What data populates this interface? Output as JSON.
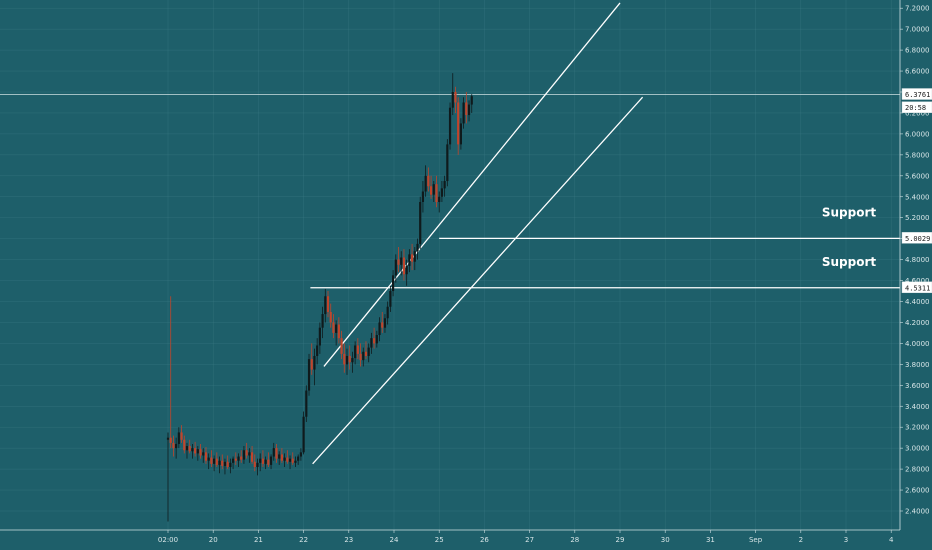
{
  "chart_data": {
    "type": "candlestick",
    "grid": true,
    "y_range": [
      2.26,
      7.26
    ],
    "y_ticks": [
      "2.4000",
      "2.6000",
      "2.8000",
      "3.0000",
      "3.2000",
      "3.4000",
      "3.6000",
      "3.8000",
      "4.0000",
      "4.2000",
      "4.4000",
      "4.6000",
      "4.8000",
      "5.0000",
      "5.2000",
      "5.4000",
      "5.6000",
      "5.8000",
      "6.0000",
      "6.2000",
      "6.4000",
      "6.6000",
      "6.8000",
      "7.0000",
      "7.2000"
    ],
    "x_ticks": [
      "02:00",
      "20",
      "21",
      "22",
      "23",
      "24",
      "25",
      "26",
      "27",
      "28",
      "29",
      "30",
      "31",
      "Sep",
      "2",
      "3",
      "4"
    ],
    "price_labels": [
      {
        "name": "last-price",
        "text": "6.3761",
        "value": 6.3761
      },
      {
        "name": "countdown",
        "text": "20:58",
        "value": 6.25
      },
      {
        "name": "support-upper",
        "text": "5.0029",
        "value": 5.0029
      },
      {
        "name": "support-lower",
        "text": "4.5311",
        "value": 4.5311
      }
    ],
    "annotations": [
      {
        "name": "support-label-upper",
        "text": "Support",
        "level": 5.0029
      },
      {
        "name": "support-label-lower",
        "text": "Support",
        "level": 4.5311
      }
    ],
    "horizontal_lines": [
      {
        "name": "last-price-line",
        "value": 6.3761,
        "from_day": 0,
        "color": "#cfe0e3",
        "width": 0.7
      },
      {
        "name": "support-line-upper",
        "value": 5.0029,
        "from_day": 6.0,
        "color": "#ffffff",
        "width": 1.3
      },
      {
        "name": "support-line-lower",
        "value": 4.5311,
        "from_day": 3.15,
        "color": "#ffffff",
        "width": 1.3
      }
    ],
    "trend_lines": [
      {
        "name": "channel-upper-line",
        "from": [
          3.45,
          3.78
        ],
        "to": [
          10.0,
          7.25
        ]
      },
      {
        "name": "channel-lower-line",
        "from": [
          3.2,
          2.85
        ],
        "to": [
          10.5,
          6.35
        ]
      }
    ],
    "candles": [
      [
        0.0,
        3.08,
        3.15,
        2.3,
        3.1
      ],
      [
        0.06,
        3.1,
        4.45,
        3.0,
        3.05
      ],
      [
        0.12,
        3.05,
        3.12,
        2.92,
        3.0
      ],
      [
        0.18,
        3.0,
        3.1,
        2.9,
        3.04
      ],
      [
        0.24,
        3.04,
        3.2,
        3.0,
        3.15
      ],
      [
        0.3,
        3.15,
        3.22,
        3.05,
        3.08
      ],
      [
        0.36,
        3.08,
        3.12,
        2.95,
        2.98
      ],
      [
        0.42,
        2.98,
        3.05,
        2.9,
        3.02
      ],
      [
        0.48,
        3.02,
        3.08,
        2.95,
        2.97
      ],
      [
        0.54,
        2.97,
        3.04,
        2.9,
        3.0
      ],
      [
        0.6,
        3.0,
        3.06,
        2.92,
        2.95
      ],
      [
        0.66,
        2.95,
        3.02,
        2.88,
        2.99
      ],
      [
        0.72,
        2.99,
        3.04,
        2.9,
        2.93
      ],
      [
        0.78,
        2.93,
        3.0,
        2.86,
        2.96
      ],
      [
        0.84,
        2.96,
        3.01,
        2.85,
        2.88
      ],
      [
        0.9,
        2.88,
        2.95,
        2.8,
        2.91
      ],
      [
        0.96,
        2.91,
        2.98,
        2.82,
        2.85
      ],
      [
        1.02,
        2.85,
        2.93,
        2.78,
        2.9
      ],
      [
        1.08,
        2.9,
        2.96,
        2.82,
        2.84
      ],
      [
        1.14,
        2.84,
        2.92,
        2.76,
        2.88
      ],
      [
        1.2,
        2.88,
        2.94,
        2.8,
        2.83
      ],
      [
        1.26,
        2.83,
        2.9,
        2.75,
        2.87
      ],
      [
        1.32,
        2.87,
        2.93,
        2.8,
        2.82
      ],
      [
        1.38,
        2.82,
        2.9,
        2.76,
        2.86
      ],
      [
        1.44,
        2.86,
        2.92,
        2.8,
        2.9
      ],
      [
        1.5,
        2.9,
        2.96,
        2.84,
        2.88
      ],
      [
        1.56,
        2.88,
        2.95,
        2.82,
        2.92
      ],
      [
        1.62,
        2.92,
        2.98,
        2.86,
        2.89
      ],
      [
        1.68,
        2.89,
        3.02,
        2.85,
        2.98
      ],
      [
        1.74,
        2.98,
        3.05,
        2.9,
        2.93
      ],
      [
        1.8,
        2.93,
        3.0,
        2.86,
        2.96
      ],
      [
        1.86,
        2.96,
        3.02,
        2.85,
        2.87
      ],
      [
        1.92,
        2.87,
        2.94,
        2.78,
        2.82
      ],
      [
        1.98,
        2.82,
        2.9,
        2.74,
        2.86
      ],
      [
        2.04,
        2.86,
        2.95,
        2.78,
        2.9
      ],
      [
        2.1,
        2.9,
        2.98,
        2.82,
        2.85
      ],
      [
        2.16,
        2.85,
        2.92,
        2.8,
        2.89
      ],
      [
        2.22,
        2.89,
        2.96,
        2.82,
        2.84
      ],
      [
        2.28,
        2.84,
        2.94,
        2.8,
        2.92
      ],
      [
        2.34,
        2.92,
        3.05,
        2.88,
        3.0
      ],
      [
        2.4,
        3.0,
        3.04,
        2.86,
        2.9
      ],
      [
        2.46,
        2.9,
        2.97,
        2.84,
        2.94
      ],
      [
        2.52,
        2.94,
        3.0,
        2.86,
        2.88
      ],
      [
        2.58,
        2.88,
        2.95,
        2.82,
        2.91
      ],
      [
        2.64,
        2.91,
        2.98,
        2.85,
        2.87
      ],
      [
        2.7,
        2.87,
        2.93,
        2.8,
        2.9
      ],
      [
        2.76,
        2.9,
        2.96,
        2.84,
        2.86
      ],
      [
        2.82,
        2.86,
        2.92,
        2.82,
        2.88
      ],
      [
        2.88,
        2.88,
        2.94,
        2.84,
        2.92
      ],
      [
        2.94,
        2.92,
        3.0,
        2.88,
        2.96
      ],
      [
        3.0,
        2.96,
        3.35,
        2.94,
        3.3
      ],
      [
        3.06,
        3.3,
        3.6,
        3.25,
        3.55
      ],
      [
        3.12,
        3.55,
        3.9,
        3.5,
        3.85
      ],
      [
        3.18,
        3.85,
        4.0,
        3.7,
        3.75
      ],
      [
        3.24,
        3.75,
        3.95,
        3.6,
        3.88
      ],
      [
        3.3,
        3.88,
        4.05,
        3.8,
        3.98
      ],
      [
        3.36,
        3.98,
        4.2,
        3.9,
        4.15
      ],
      [
        3.42,
        4.15,
        4.35,
        4.05,
        4.28
      ],
      [
        3.48,
        4.28,
        4.52,
        4.2,
        4.45
      ],
      [
        3.54,
        4.45,
        4.5,
        4.25,
        4.3
      ],
      [
        3.6,
        4.3,
        4.38,
        4.15,
        4.2
      ],
      [
        3.66,
        4.2,
        4.28,
        4.05,
        4.1
      ],
      [
        3.72,
        4.1,
        4.22,
        3.98,
        4.18
      ],
      [
        3.78,
        4.18,
        4.25,
        4.0,
        4.05
      ],
      [
        3.84,
        4.05,
        4.12,
        3.85,
        3.9
      ],
      [
        3.9,
        3.9,
        4.0,
        3.72,
        3.8
      ],
      [
        3.96,
        3.8,
        3.95,
        3.7,
        3.88
      ],
      [
        4.02,
        3.88,
        3.98,
        3.75,
        3.82
      ],
      [
        4.08,
        3.82,
        3.92,
        3.72,
        3.86
      ],
      [
        4.14,
        3.86,
        4.02,
        3.8,
        3.98
      ],
      [
        4.2,
        3.98,
        4.05,
        3.85,
        3.9
      ],
      [
        4.26,
        3.9,
        4.0,
        3.78,
        3.84
      ],
      [
        4.32,
        3.84,
        3.96,
        3.78,
        3.92
      ],
      [
        4.38,
        3.92,
        4.02,
        3.85,
        3.88
      ],
      [
        4.44,
        3.88,
        4.0,
        3.82,
        3.96
      ],
      [
        4.5,
        3.96,
        4.1,
        3.9,
        4.05
      ],
      [
        4.56,
        4.05,
        4.15,
        3.95,
        4.0
      ],
      [
        4.62,
        4.0,
        4.12,
        3.96,
        4.08
      ],
      [
        4.68,
        4.08,
        4.25,
        4.02,
        4.2
      ],
      [
        4.74,
        4.2,
        4.3,
        4.1,
        4.15
      ],
      [
        4.8,
        4.15,
        4.28,
        4.1,
        4.24
      ],
      [
        4.86,
        4.24,
        4.4,
        4.18,
        4.35
      ],
      [
        4.92,
        4.35,
        4.55,
        4.3,
        4.5
      ],
      [
        4.98,
        4.5,
        4.7,
        4.45,
        4.65
      ],
      [
        5.04,
        4.65,
        4.85,
        4.58,
        4.8
      ],
      [
        5.1,
        4.8,
        4.92,
        4.68,
        4.75
      ],
      [
        5.16,
        4.75,
        4.88,
        4.65,
        4.82
      ],
      [
        5.22,
        4.82,
        4.9,
        4.6,
        4.66
      ],
      [
        5.28,
        4.66,
        4.8,
        4.55,
        4.74
      ],
      [
        5.34,
        4.74,
        4.9,
        4.68,
        4.85
      ],
      [
        5.4,
        4.85,
        4.95,
        4.7,
        4.78
      ],
      [
        5.46,
        4.78,
        4.92,
        4.7,
        4.88
      ],
      [
        5.52,
        4.88,
        5.0,
        4.8,
        4.95
      ],
      [
        5.58,
        4.95,
        5.4,
        4.9,
        5.35
      ],
      [
        5.64,
        5.35,
        5.55,
        5.25,
        5.45
      ],
      [
        5.7,
        5.45,
        5.7,
        5.4,
        5.6
      ],
      [
        5.76,
        5.6,
        5.68,
        5.45,
        5.5
      ],
      [
        5.82,
        5.5,
        5.6,
        5.38,
        5.42
      ],
      [
        5.88,
        5.42,
        5.55,
        5.35,
        5.52
      ],
      [
        5.94,
        5.52,
        5.6,
        5.3,
        5.35
      ],
      [
        6.0,
        5.35,
        5.45,
        5.25,
        5.4
      ],
      [
        6.06,
        5.4,
        5.55,
        5.35,
        5.48
      ],
      [
        6.12,
        5.48,
        5.6,
        5.4,
        5.55
      ],
      [
        6.18,
        5.55,
        5.95,
        5.5,
        5.9
      ],
      [
        6.24,
        5.9,
        6.3,
        5.85,
        6.25
      ],
      [
        6.3,
        6.25,
        6.58,
        6.18,
        6.4
      ],
      [
        6.36,
        6.4,
        6.45,
        6.2,
        6.3
      ],
      [
        6.42,
        6.3,
        6.35,
        5.8,
        5.9
      ],
      [
        6.48,
        5.9,
        6.15,
        5.85,
        6.1
      ],
      [
        6.54,
        6.1,
        6.35,
        6.05,
        6.3
      ],
      [
        6.6,
        6.3,
        6.4,
        6.1,
        6.18
      ],
      [
        6.66,
        6.18,
        6.32,
        6.12,
        6.28
      ],
      [
        6.72,
        6.28,
        6.38,
        6.2,
        6.36
      ]
    ],
    "colors": {
      "background": "#1e5f6a",
      "grid": "#3f7d87",
      "up_candle": "#0f1a1c",
      "down_candle": "#c0452c",
      "text": "#d8e6e8"
    }
  }
}
